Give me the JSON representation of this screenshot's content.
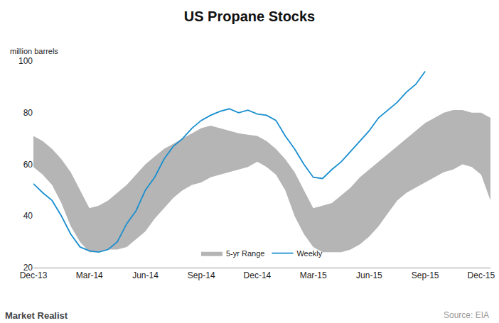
{
  "chart_data": {
    "type": "line",
    "title": "US Propane Stocks",
    "y_label": "million barrels",
    "source": "Source: EIA",
    "brand": "Market Realist",
    "categories": [
      "Dec-13",
      null,
      null,
      null,
      null,
      null,
      "Mar-14",
      null,
      null,
      null,
      null,
      null,
      "Jun-14",
      null,
      null,
      null,
      null,
      null,
      "Sep-14",
      null,
      null,
      null,
      null,
      null,
      "Dec-14",
      null,
      null,
      null,
      null,
      null,
      "Mar-15",
      null,
      null,
      null,
      null,
      null,
      "Jun-15",
      null,
      null,
      null,
      null,
      null,
      "Sep-15",
      null,
      null,
      null,
      null,
      null,
      "Dec-15",
      null
    ],
    "series": [
      {
        "name": "5-yr Range",
        "type": "area",
        "color": "#b5b5b5",
        "lower": [
          59,
          56,
          52,
          45,
          36,
          30,
          26,
          26,
          27,
          27,
          28,
          31,
          34,
          39,
          43,
          47,
          50,
          52,
          53,
          55,
          56,
          57,
          58,
          59,
          61,
          59,
          56,
          50,
          40,
          33,
          28,
          26,
          26,
          26,
          27,
          29,
          32,
          36,
          41,
          46,
          49,
          51,
          53,
          55,
          57,
          58,
          60,
          59,
          56,
          46
        ],
        "upper": [
          71,
          69,
          66,
          62,
          57,
          50,
          43,
          44,
          46,
          49,
          52,
          56,
          60,
          63,
          66,
          68,
          70,
          72,
          74,
          75,
          74,
          73,
          72,
          71.5,
          71,
          69,
          66,
          62,
          57,
          50,
          43,
          44,
          45,
          48,
          51,
          55,
          58,
          61,
          64,
          67,
          70,
          73,
          76,
          78,
          80,
          81,
          81,
          80,
          80,
          78
        ]
      },
      {
        "name": "Weekly",
        "type": "line",
        "color": "#1a8fcf",
        "values": [
          52.5,
          49,
          46,
          40,
          33,
          28,
          26.5,
          26,
          27,
          30,
          37,
          42,
          50,
          55,
          62,
          67,
          70,
          74,
          77,
          79,
          80.5,
          81.5,
          80,
          81,
          79.5,
          79,
          77,
          71,
          66,
          60,
          55,
          54.5,
          58,
          61,
          65,
          69,
          73,
          78,
          81,
          84,
          88,
          91,
          96,
          null,
          null,
          null,
          null,
          null,
          null,
          null
        ]
      }
    ],
    "ylim": [
      20,
      100
    ],
    "yticks": [
      20,
      40,
      60,
      80,
      100
    ],
    "grid": false,
    "legend": "bottom"
  }
}
